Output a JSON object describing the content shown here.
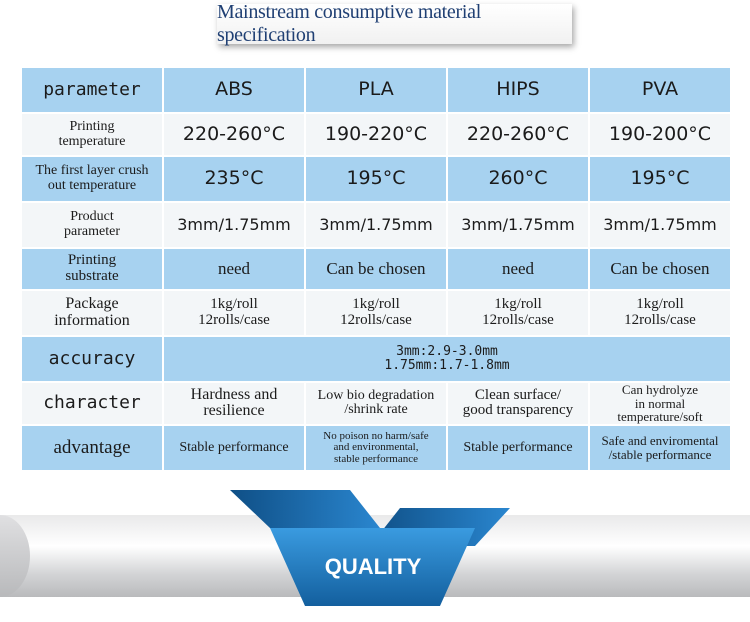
{
  "title": "Mainstream consumptive material specification",
  "header": {
    "label": "parameter",
    "cols": [
      "ABS",
      "PLA",
      "HIPS",
      "PVA"
    ]
  },
  "rows": {
    "printing_temp": {
      "label": "Printing\ntemperature",
      "values": [
        "220-260°C",
        "190-220°C",
        "220-260°C",
        "190-200°C"
      ]
    },
    "first_layer": {
      "label": "The first layer crush\nout temperature",
      "values": [
        "235°C",
        "195°C",
        "260°C",
        "195°C"
      ]
    },
    "product": {
      "label": "Product\nparameter",
      "values": [
        "3mm/1.75mm",
        "3mm/1.75mm",
        "3mm/1.75mm",
        "3mm/1.75mm"
      ]
    },
    "substrate": {
      "label": "Printing\nsubstrate",
      "values": [
        "need",
        "Can be chosen",
        "need",
        "Can be chosen"
      ]
    },
    "package": {
      "label": "Package\ninformation",
      "values": [
        "1kg/roll\n12rolls/case",
        "1kg/roll\n12rolls/case",
        "1kg/roll\n12rolls/case",
        "1kg/roll\n12rolls/case"
      ]
    },
    "accuracy": {
      "label": "accuracy",
      "value": "3mm:2.9-3.0mm\n1.75mm:1.7-1.8mm"
    },
    "character": {
      "label": "character",
      "values": [
        "Hardness and\nresilience",
        "Low bio degradation\n/shrink rate",
        "Clean surface/\ngood transparency",
        "Can hydrolyze\nin normal\ntemperature/soft"
      ]
    },
    "advantage": {
      "label": "advantage",
      "values": [
        "Stable performance",
        "No poison no harm/safe\nand environmental,\nstable performance",
        "Stable performance",
        "Safe and enviromental\n/stable performance"
      ]
    }
  },
  "banner": {
    "text": "QUALITY"
  },
  "colors": {
    "row_blue": "#a7d2f0",
    "row_white": "#f3f6f8",
    "ribbon": "#1e7fc4",
    "title_text": "#1f3f73"
  }
}
